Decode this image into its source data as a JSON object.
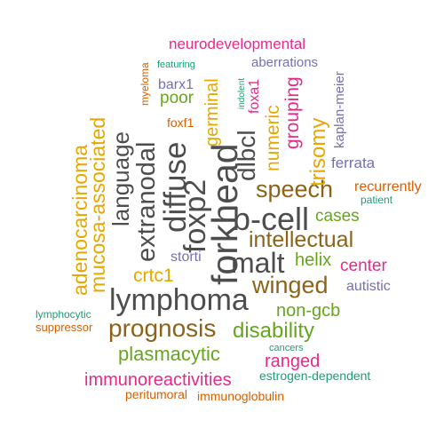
{
  "palette": {
    "gray": "#4d4d4d",
    "brown": "#8c6418",
    "gold": "#e5a800",
    "green": "#66a61e",
    "magenta": "#e7298a",
    "purple": "#7570b3",
    "orange": "#d95f02",
    "teal": "#1b9e77"
  },
  "words": {
    "neurodevelopmental": {
      "text": "neurodevelopmental",
      "color": "#e7298a"
    },
    "featuring": {
      "text": "featuring",
      "color": "#1b9e77"
    },
    "aberrations": {
      "text": "aberrations",
      "color": "#7570b3"
    },
    "myeloma": {
      "text": "myeloma",
      "color": "#d95f02"
    },
    "germinal": {
      "text": "germinal",
      "color": "#e5a800"
    },
    "barx1": {
      "text": "barx1",
      "color": "#7570b3"
    },
    "poor": {
      "text": "poor",
      "color": "#66a61e"
    },
    "indolent": {
      "text": "indolent",
      "color": "#1b9e77"
    },
    "foxa1": {
      "text": "foxa1",
      "color": "#e7298a"
    },
    "numeric": {
      "text": "numeric",
      "color": "#e5a800"
    },
    "grouping": {
      "text": "grouping",
      "color": "#e7298a"
    },
    "trisomy": {
      "text": "trisomy",
      "color": "#e5a800"
    },
    "kaplan_meier": {
      "text": "kaplan-meier",
      "color": "#7570b3"
    },
    "foxf1": {
      "text": "foxf1",
      "color": "#d95f02"
    },
    "adenocarcinoma": {
      "text": "adenocarcinoma",
      "color": "#e5a800"
    },
    "mucosa_associated": {
      "text": "mucosa-associated",
      "color": "#e5a800"
    },
    "language": {
      "text": "language",
      "color": "#4d4d4d"
    },
    "extranodal": {
      "text": "extranodal",
      "color": "#4d4d4d"
    },
    "diffuse": {
      "text": "diffuse",
      "color": "#4d4d4d"
    },
    "foxp2": {
      "text": "foxp2",
      "color": "#4d4d4d"
    },
    "forkhead": {
      "text": "forkhead",
      "color": "#4d4d4d"
    },
    "dlbcl": {
      "text": "dlbcl",
      "color": "#4d4d4d"
    },
    "ferrata": {
      "text": "ferrata",
      "color": "#7570b3"
    },
    "speech": {
      "text": "speech",
      "color": "#8c6418"
    },
    "recurrently": {
      "text": "recurrently",
      "color": "#d95f02"
    },
    "patient": {
      "text": "patient",
      "color": "#1b9e77"
    },
    "cases": {
      "text": "cases",
      "color": "#66a61e"
    },
    "b_cell": {
      "text": "b-cell",
      "color": "#4d4d4d"
    },
    "intellectual": {
      "text": "intellectual",
      "color": "#8c6418"
    },
    "storti": {
      "text": "storti",
      "color": "#7570b3"
    },
    "malt": {
      "text": "malt",
      "color": "#4d4d4d"
    },
    "helix": {
      "text": "helix",
      "color": "#66a61e"
    },
    "center": {
      "text": "center",
      "color": "#e7298a"
    },
    "crtc1": {
      "text": "crtc1",
      "color": "#e5a800"
    },
    "winged": {
      "text": "winged",
      "color": "#8c6418"
    },
    "autistic": {
      "text": "autistic",
      "color": "#7570b3"
    },
    "lymphoma": {
      "text": "lymphoma",
      "color": "#4d4d4d"
    },
    "non_gcb": {
      "text": "non-gcb",
      "color": "#66a61e"
    },
    "lymphocytic": {
      "text": "lymphocytic",
      "color": "#1b9e77"
    },
    "suppressor": {
      "text": "suppressor",
      "color": "#d95f02"
    },
    "prognosis": {
      "text": "prognosis",
      "color": "#8c6418"
    },
    "disability": {
      "text": "disability",
      "color": "#66a61e"
    },
    "cancers": {
      "text": "cancers",
      "color": "#1b9e77"
    },
    "plasmacytic": {
      "text": "plasmacytic",
      "color": "#66a61e"
    },
    "ranged": {
      "text": "ranged",
      "color": "#e7298a"
    },
    "estrogen_dependent": {
      "text": "estrogen-dependent",
      "color": "#1b9e77"
    },
    "immunoreactivities": {
      "text": "immunoreactivities",
      "color": "#e7298a"
    },
    "peritumoral": {
      "text": "peritumoral",
      "color": "#d95f02"
    },
    "immunoglobulin": {
      "text": "immunoglobulin",
      "color": "#d95f02"
    }
  }
}
